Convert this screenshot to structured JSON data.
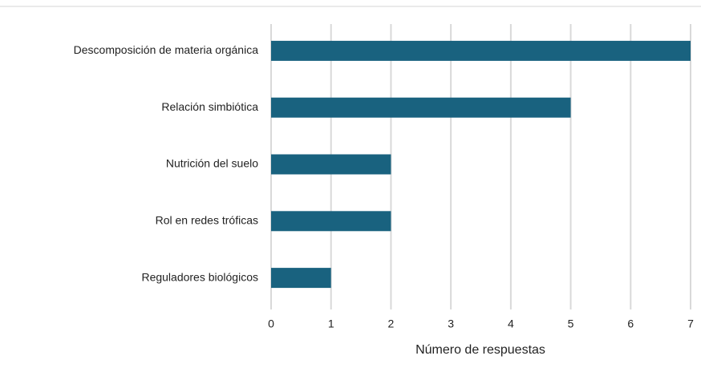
{
  "chart_data": {
    "type": "bar",
    "orientation": "horizontal",
    "x_label": "Número de respuestas",
    "categories": [
      "Descomposición de materia orgánica",
      "Relación simbiótica",
      "Nutrición del suelo",
      "Rol en redes tróficas",
      "Reguladores biológicos"
    ],
    "values": [
      7,
      5,
      2,
      2,
      1
    ],
    "color": "#19627f",
    "xlim": [
      0,
      7
    ],
    "xticks": [
      0,
      1,
      2,
      3,
      4,
      5,
      6,
      7
    ],
    "grid": true
  }
}
